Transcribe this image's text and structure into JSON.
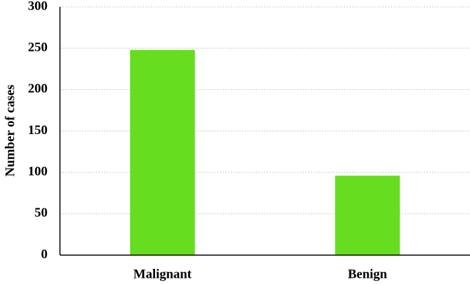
{
  "chart_data": {
    "type": "bar",
    "y_label": "Number of cases",
    "categories": [
      "Malignant",
      "Benign"
    ],
    "values": [
      248,
      96
    ],
    "color": "#66dd1e",
    "ylim": [
      0,
      300
    ],
    "yticks": [
      0,
      50,
      100,
      150,
      200,
      250,
      300
    ],
    "grid": true
  }
}
